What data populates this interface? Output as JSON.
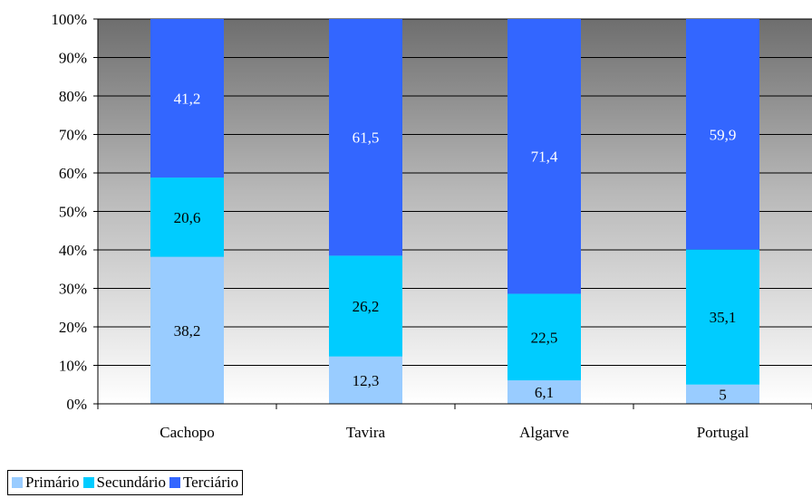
{
  "chart_data": {
    "type": "bar",
    "stacked": "percent",
    "categories": [
      "Cachopo",
      "Tavira",
      "Algarve",
      "Portugal"
    ],
    "series": [
      {
        "name": "Primário",
        "values": [
          38.2,
          12.3,
          6.1,
          5
        ],
        "labels": [
          "38,2",
          "12,3",
          "6,1",
          "5"
        ],
        "color": "#99ccff",
        "label_color": "#000000"
      },
      {
        "name": "Secundário",
        "values": [
          20.6,
          26.2,
          22.5,
          35.1
        ],
        "labels": [
          "20,6",
          "26,2",
          "22,5",
          "35,1"
        ],
        "color": "#00ccff",
        "label_color": "#000000"
      },
      {
        "name": "Terciário",
        "values": [
          41.2,
          61.5,
          71.4,
          59.9
        ],
        "labels": [
          "41,2",
          "61,5",
          "71,4",
          "59,9"
        ],
        "color": "#3366ff",
        "label_color": "#ffffff"
      }
    ],
    "yticks": [
      "0%",
      "10%",
      "20%",
      "30%",
      "40%",
      "50%",
      "60%",
      "70%",
      "80%",
      "90%",
      "100%"
    ],
    "ylim": [
      0,
      100
    ],
    "grid": true,
    "background": "gradient gray (dark top, light bottom)",
    "legend_position": "bottom-left"
  }
}
